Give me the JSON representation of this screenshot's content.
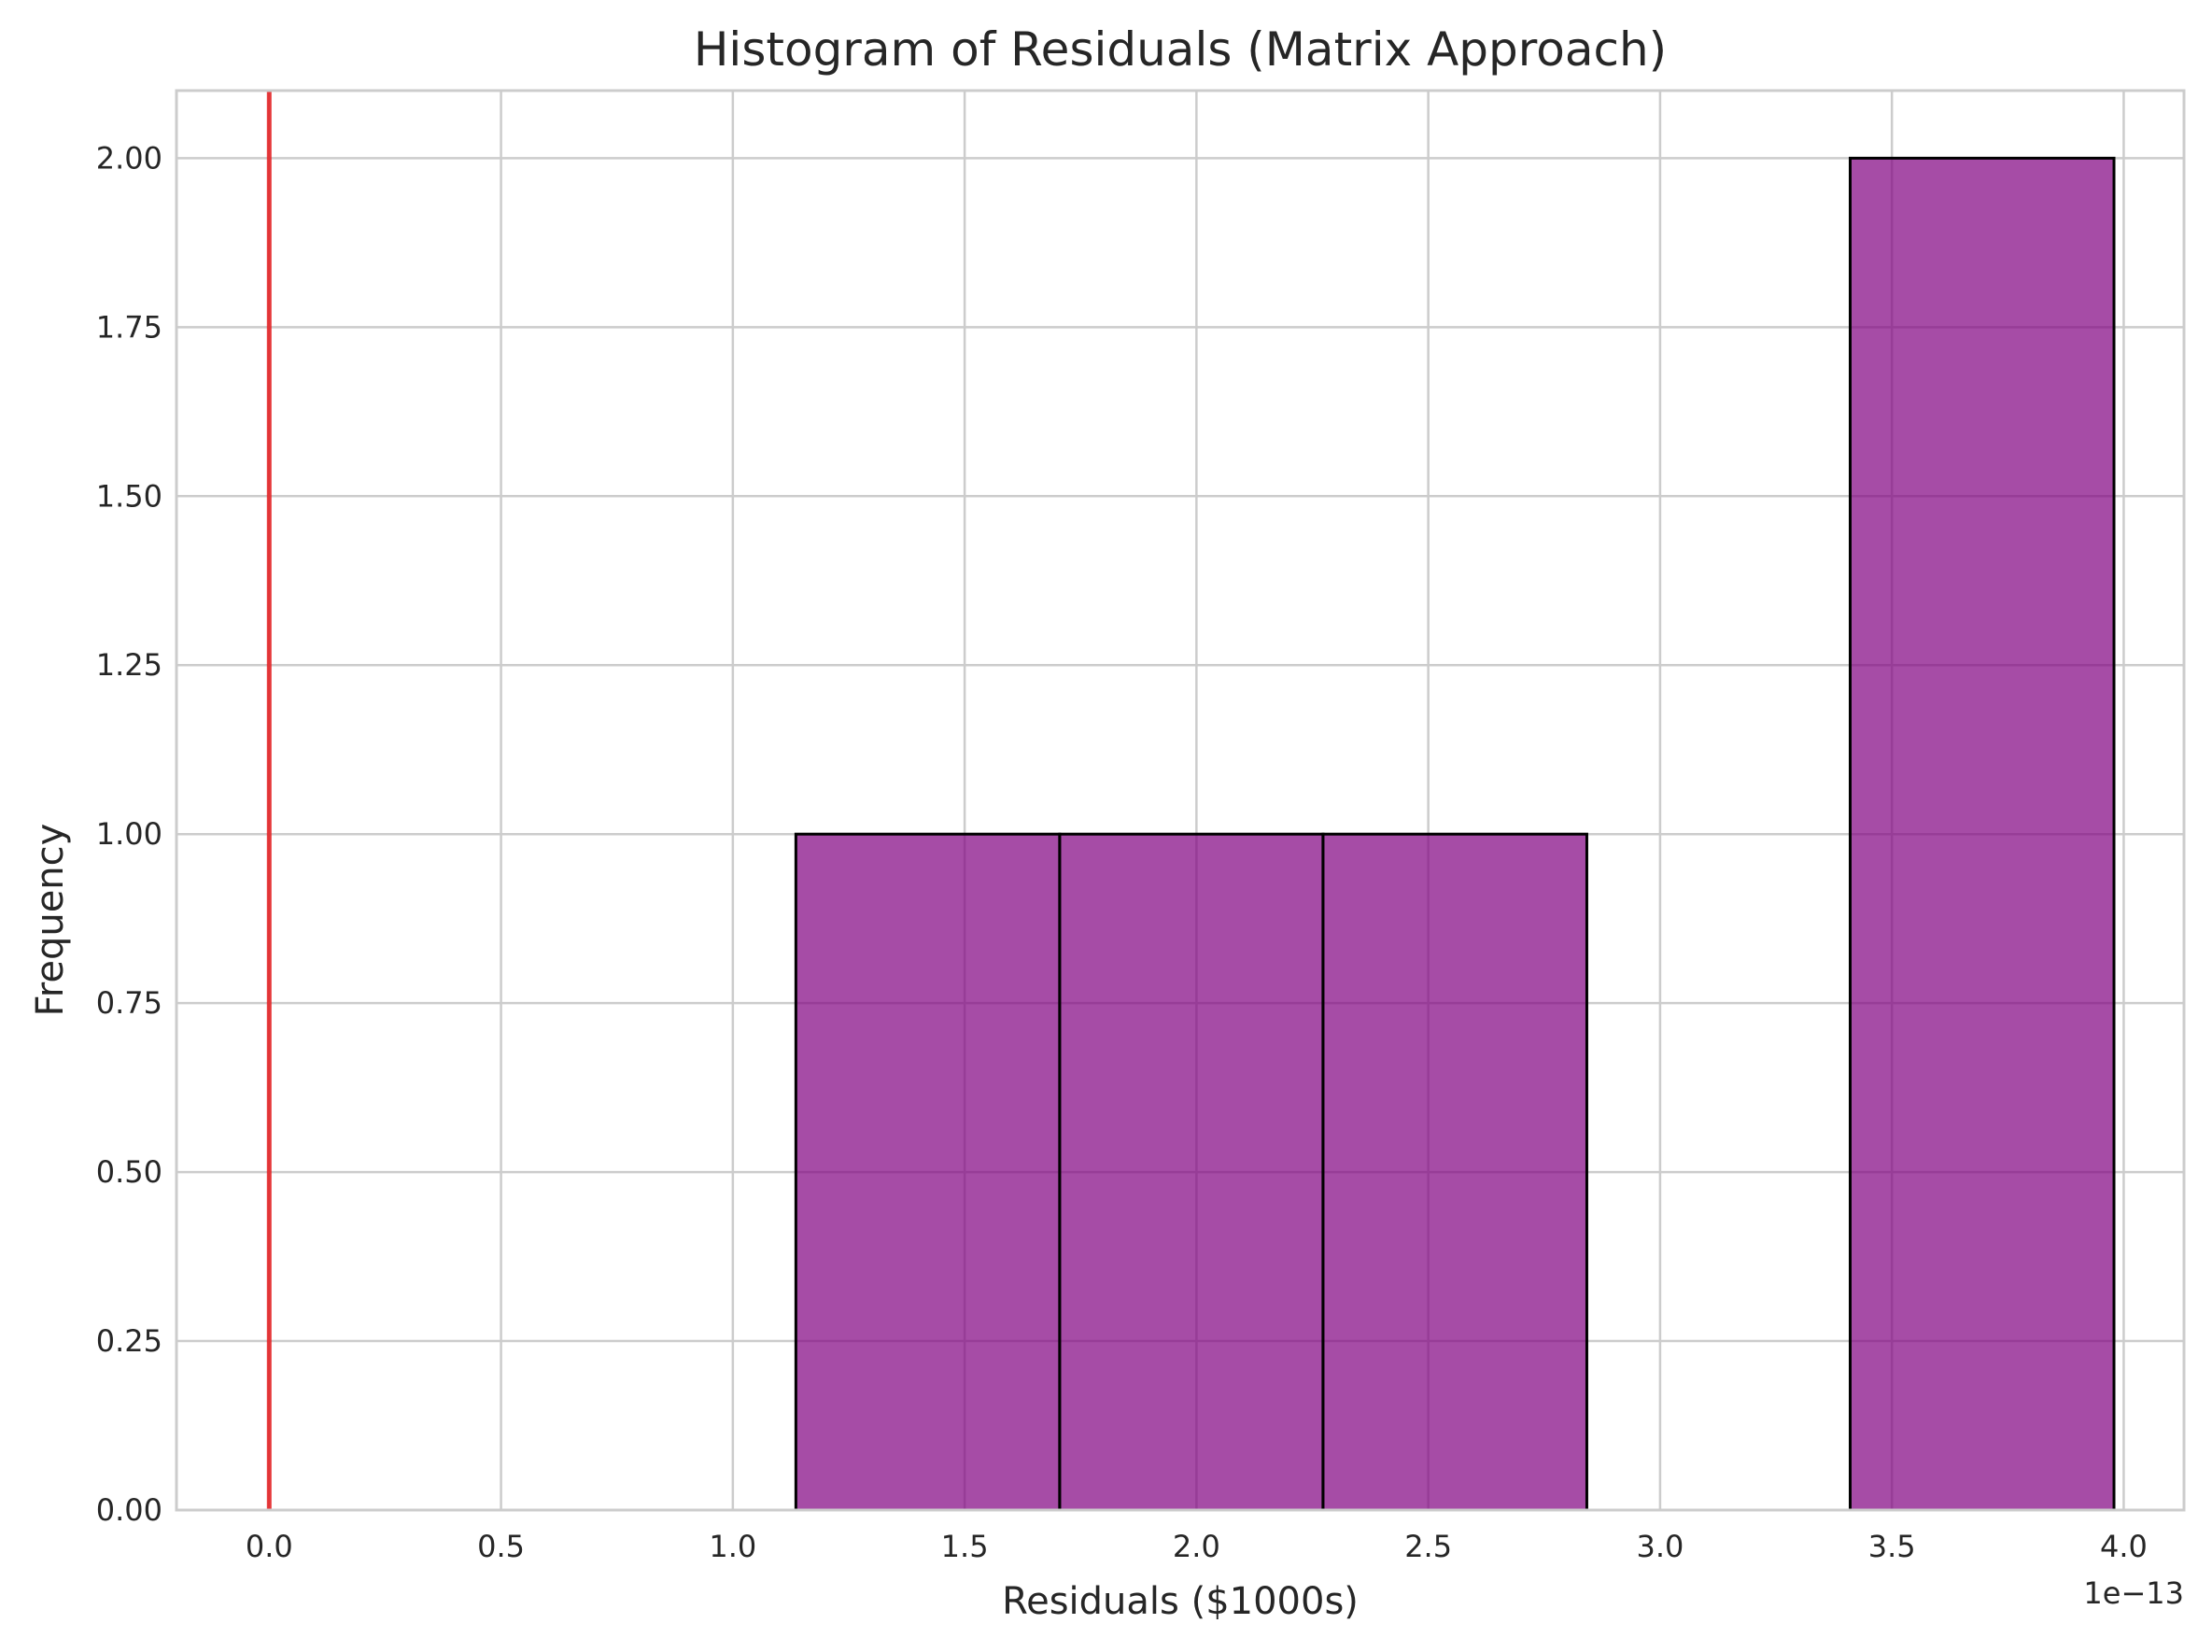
{
  "chart_data": {
    "type": "bar",
    "title": "Histogram of Residuals (Matrix Approach)",
    "xlabel": "Residuals ($1000s)",
    "ylabel": "Frequency",
    "x_offset_label": "1e−13",
    "xlim": [
      -0.2,
      4.13
    ],
    "ylim": [
      0,
      2.1
    ],
    "x_ticks": [
      0.0,
      0.5,
      1.0,
      1.5,
      2.0,
      2.5,
      3.0,
      3.5,
      4.0
    ],
    "x_tick_labels": [
      "0.0",
      "0.5",
      "1.0",
      "1.5",
      "2.0",
      "2.5",
      "3.0",
      "3.5",
      "4.0"
    ],
    "y_ticks": [
      0,
      0.25,
      0.5,
      0.75,
      1.0,
      1.25,
      1.5,
      1.75,
      2.0
    ],
    "y_tick_labels": [
      "0.00",
      "0.25",
      "0.50",
      "0.75",
      "1.00",
      "1.25",
      "1.50",
      "1.75",
      "2.00"
    ],
    "bins": [
      {
        "start": 1.136,
        "end": 1.705,
        "count": 1
      },
      {
        "start": 1.705,
        "end": 2.273,
        "count": 1
      },
      {
        "start": 2.273,
        "end": 2.842,
        "count": 1
      },
      {
        "start": 2.842,
        "end": 3.41,
        "count": 0
      },
      {
        "start": 3.41,
        "end": 3.979,
        "count": 2
      }
    ],
    "reference_line_x": 0.0,
    "grid": true,
    "colors": {
      "bar_fill": "#800080",
      "bar_opacity": 0.7,
      "bar_edge": "#000000",
      "reference_line": "#e41a1c",
      "grid": "#cccccc"
    }
  }
}
